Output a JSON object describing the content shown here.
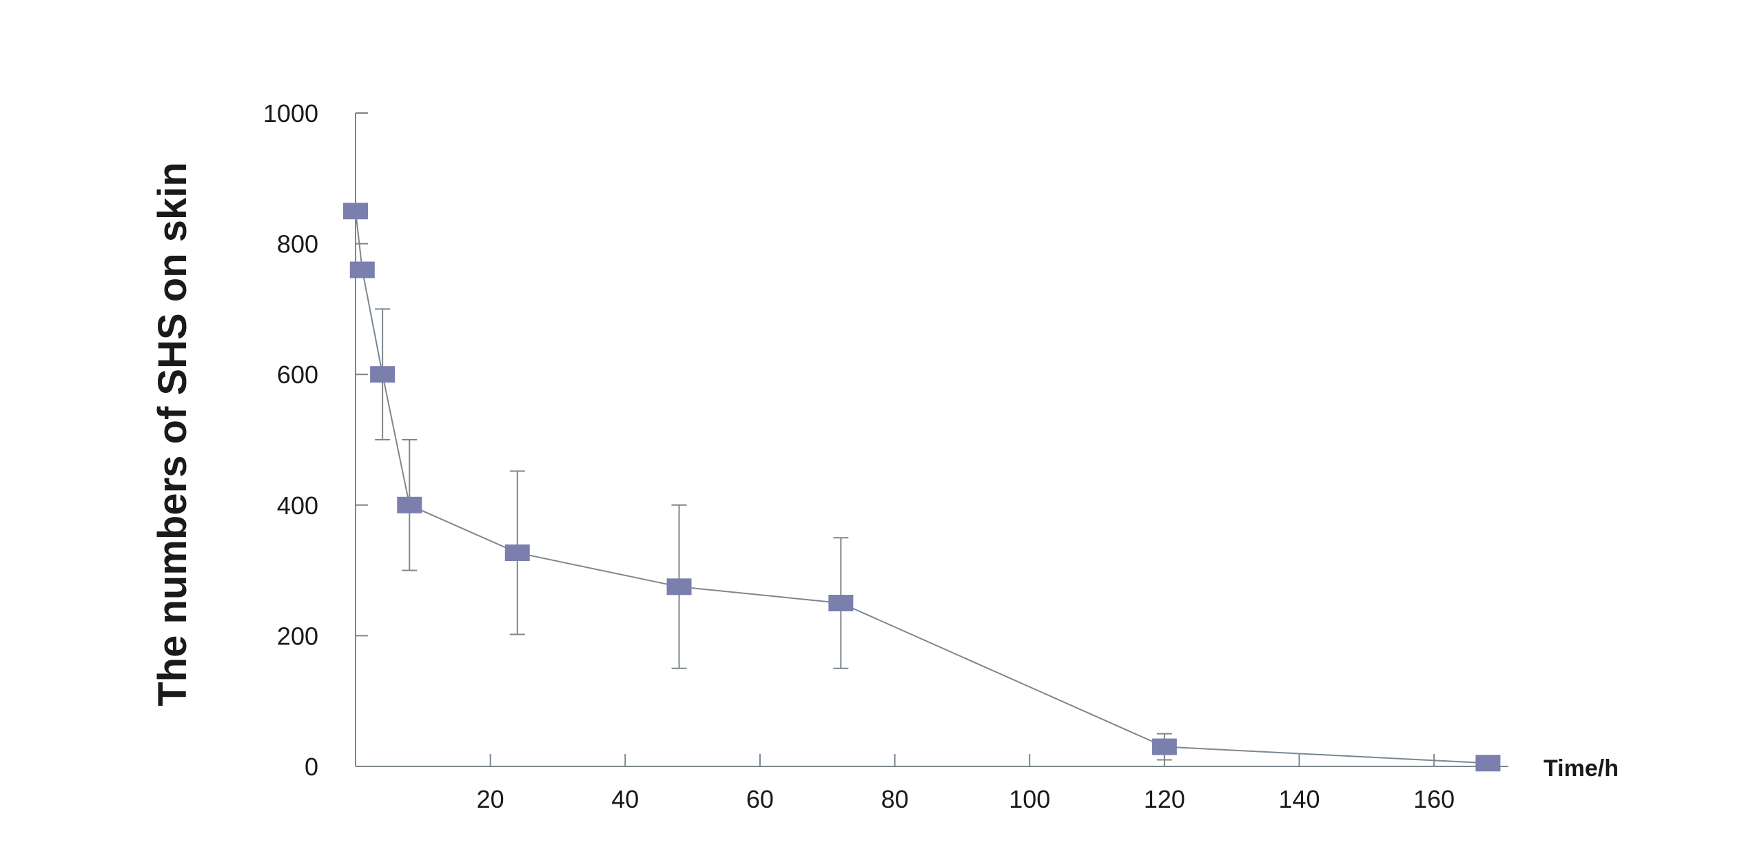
{
  "chart_data": {
    "type": "line",
    "title": "",
    "xlabel": "Time/h",
    "ylabel": "The numbers of SHS on skin",
    "xlim": [
      0,
      170
    ],
    "ylim": [
      0,
      1000
    ],
    "x_ticks": [
      20,
      40,
      60,
      80,
      100,
      120,
      140,
      160
    ],
    "y_ticks": [
      0,
      200,
      400,
      600,
      800,
      1000
    ],
    "grid": false,
    "legend": "none",
    "colors": {
      "marker": "#7b7fae",
      "line": "#7d868c",
      "axis": "#7d868c",
      "text": "#1a1a1a"
    },
    "series": [
      {
        "x": [
          0,
          1,
          4,
          8,
          24,
          48,
          72,
          120,
          168
        ],
        "y": [
          850,
          760,
          600,
          400,
          327,
          275,
          250,
          30,
          5
        ],
        "error": [
          null,
          null,
          100,
          100,
          125,
          125,
          100,
          20,
          null
        ]
      }
    ]
  }
}
